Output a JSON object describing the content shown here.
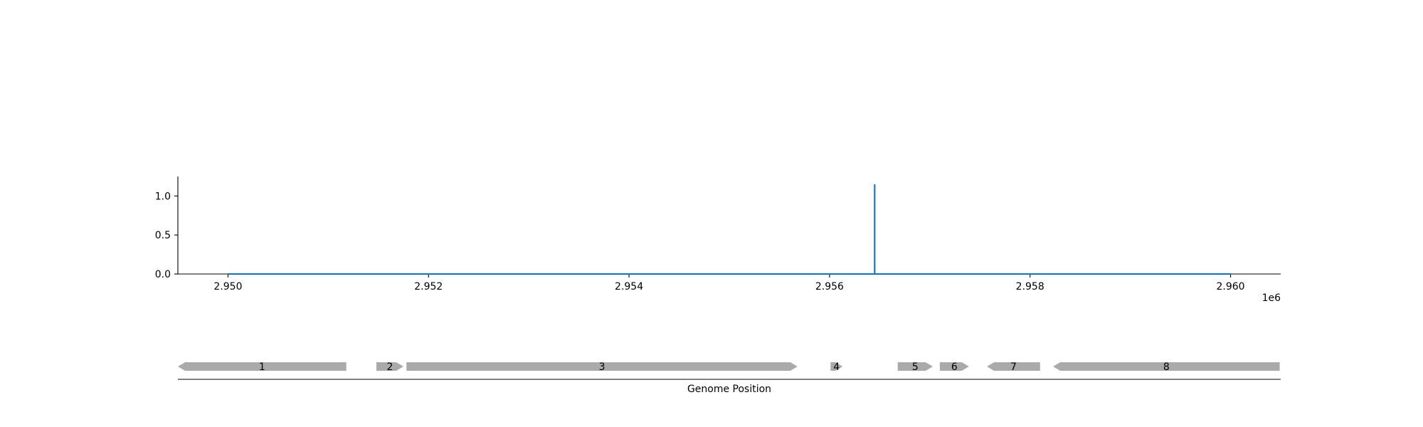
{
  "chart_data": [
    {
      "type": "line",
      "title": "",
      "xlabel": "",
      "ylabel": "",
      "x_offset_label": "1e6",
      "xlim": [
        2.9495,
        2.9605
      ],
      "ylim": [
        0,
        1.25
      ],
      "x_ticks": [
        2.95,
        2.952,
        2.954,
        2.956,
        2.958,
        2.96
      ],
      "x_tick_labels": [
        "2.950",
        "2.952",
        "2.954",
        "2.956",
        "2.958",
        "2.960"
      ],
      "y_ticks": [
        0.0,
        0.5,
        1.0
      ],
      "y_tick_labels": [
        "0.0",
        "0.5",
        "1.0"
      ],
      "grid": false,
      "series": [
        {
          "color": "#1f77b4",
          "x": [
            2.95,
            2.95645,
            2.95645,
            2.95645,
            2.96
          ],
          "y": [
            0.0,
            0.0,
            1.15,
            0.0,
            0.0
          ]
        }
      ]
    },
    {
      "type": "gene-track",
      "xlabel": "Genome Position",
      "color": "#aaaaaa",
      "genes": [
        {
          "label": "1",
          "start": 2.9495,
          "end": 2.95118,
          "strand": "-"
        },
        {
          "label": "2",
          "start": 2.95148,
          "end": 2.95175,
          "strand": "+"
        },
        {
          "label": "3",
          "start": 2.95178,
          "end": 2.95568,
          "strand": "+"
        },
        {
          "label": "4",
          "start": 2.95601,
          "end": 2.95613,
          "strand": "+"
        },
        {
          "label": "5",
          "start": 2.95668,
          "end": 2.95703,
          "strand": "+"
        },
        {
          "label": "6",
          "start": 2.9571,
          "end": 2.95739,
          "strand": "+"
        },
        {
          "label": "7",
          "start": 2.95757,
          "end": 2.9581,
          "strand": "-"
        },
        {
          "label": "8",
          "start": 2.95823,
          "end": 2.96049,
          "strand": "-"
        }
      ]
    }
  ]
}
